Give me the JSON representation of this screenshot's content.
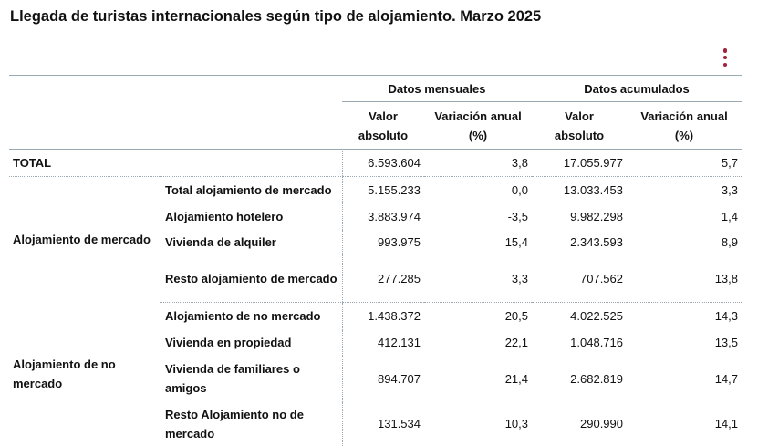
{
  "title": "Llegada de turistas internacionales según tipo de alojamiento. Marzo 2025",
  "menu_icon": "vertical-ellipsis-icon",
  "accent_color": "#a0253c",
  "headers": {
    "group_monthly": "Datos mensuales",
    "group_cumulative": "Datos acumulados",
    "col_value_line1": "Valor",
    "col_value_line2": "absoluto",
    "col_var_line1": "Variación anual",
    "col_var_line2": "(%)"
  },
  "total": {
    "label": "TOTAL",
    "m_val": "6.593.604",
    "m_var": "3,8",
    "a_val": "17.055.977",
    "a_var": "5,7"
  },
  "groups": [
    {
      "label": "Alojamiento de mercado",
      "rows": [
        {
          "label": "Total alojamiento de mercado",
          "m_val": "5.155.233",
          "m_var": "0,0",
          "a_val": "13.033.453",
          "a_var": "3,3"
        },
        {
          "label": "Alojamiento hotelero",
          "m_val": "3.883.974",
          "m_var": "-3,5",
          "a_val": "9.982.298",
          "a_var": "1,4"
        },
        {
          "label": "Vivienda de alquiler",
          "m_val": "993.975",
          "m_var": "15,4",
          "a_val": "2.343.593",
          "a_var": "8,9"
        },
        {
          "label": "Resto alojamiento de mercado",
          "m_val": "277.285",
          "m_var": "3,3",
          "a_val": "707.562",
          "a_var": "13,8"
        }
      ]
    },
    {
      "label": "Alojamiento de no mercado",
      "rows": [
        {
          "label": "Alojamiento de no mercado",
          "m_val": "1.438.372",
          "m_var": "20,5",
          "a_val": "4.022.525",
          "a_var": "14,3"
        },
        {
          "label": "Vivienda en propiedad",
          "m_val": "412.131",
          "m_var": "22,1",
          "a_val": "1.048.716",
          "a_var": "13,5"
        },
        {
          "label": "Vivienda de familiares o amigos",
          "m_val": "894.707",
          "m_var": "21,4",
          "a_val": "2.682.819",
          "a_var": "14,7"
        },
        {
          "label": "Resto Alojamiento no de mercado",
          "m_val": "131.534",
          "m_var": "10,3",
          "a_val": "290.990",
          "a_var": "14,1"
        }
      ]
    }
  ]
}
